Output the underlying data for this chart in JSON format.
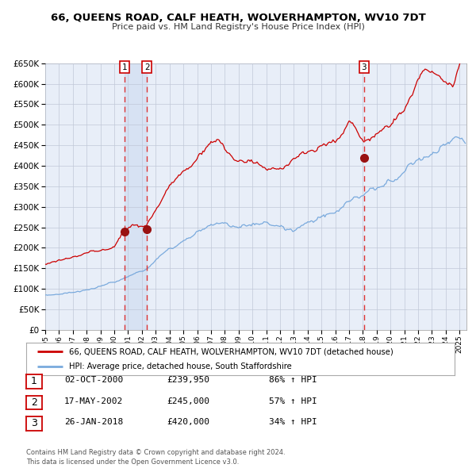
{
  "title": "66, QUEENS ROAD, CALF HEATH, WOLVERHAMPTON, WV10 7DT",
  "subtitle": "Price paid vs. HM Land Registry's House Price Index (HPI)",
  "legend_label_red": "66, QUEENS ROAD, CALF HEATH, WOLVERHAMPTON, WV10 7DT (detached house)",
  "legend_label_blue": "HPI: Average price, detached house, South Staffordshire",
  "transactions": [
    {
      "num": 1,
      "date": "02-OCT-2000",
      "price": 239950,
      "hpi_pct": "86%",
      "date_decimal": 2000.75
    },
    {
      "num": 2,
      "date": "17-MAY-2002",
      "price": 245000,
      "hpi_pct": "57%",
      "date_decimal": 2002.37
    },
    {
      "num": 3,
      "date": "26-JAN-2018",
      "price": 420000,
      "hpi_pct": "34%",
      "date_decimal": 2018.07
    }
  ],
  "footnote": "Contains HM Land Registry data © Crown copyright and database right 2024.\nThis data is licensed under the Open Government Licence v3.0.",
  "ylim": [
    0,
    650000
  ],
  "yticks": [
    0,
    50000,
    100000,
    150000,
    200000,
    250000,
    300000,
    350000,
    400000,
    450000,
    500000,
    550000,
    600000,
    650000
  ],
  "xlim_start": 1995.0,
  "xlim_end": 2025.5,
  "bg_color": "#e8eef8",
  "red_color": "#cc0000",
  "blue_color": "#7aaadd",
  "vline_color": "#dd3333",
  "shade_color": "#c8d8f0",
  "grid_color": "#c0c8d8",
  "border_color": "#cc0000",
  "fig_bg": "#ffffff"
}
